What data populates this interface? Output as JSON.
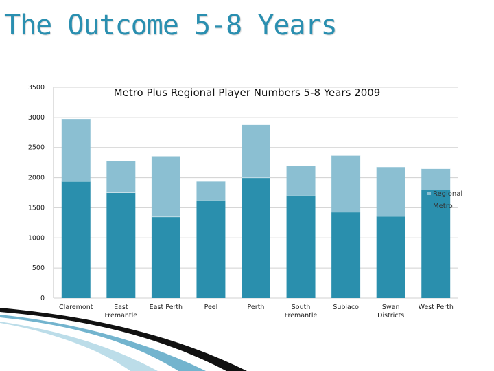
{
  "slide": {
    "title": "The Outcome 5-8 Years"
  },
  "colors": {
    "metro": "#2a8fad",
    "regional": "#8bbfd2",
    "title": "#2a8fb0"
  },
  "chart_data": {
    "type": "bar",
    "stacked": true,
    "title": "Metro Plus Regional Player Numbers 5-8 Years 2009",
    "categories": [
      "Claremont",
      "East Fremantle",
      "East Perth",
      "Peel",
      "Perth",
      "South Fremantle",
      "Subiaco",
      "Swan Districts",
      "West Perth"
    ],
    "series": [
      {
        "name": "Metro",
        "values": [
          1940,
          1750,
          1350,
          1630,
          2000,
          1710,
          1430,
          1360,
          1800
        ]
      },
      {
        "name": "Regional",
        "values": [
          1040,
          530,
          1010,
          310,
          880,
          490,
          940,
          820,
          350
        ]
      }
    ],
    "ylim": [
      0,
      3500
    ],
    "yticks": [
      "0",
      "500",
      "1000",
      "1500",
      "2000",
      "2500",
      "3000",
      "3500"
    ],
    "legend": {
      "placement": "right",
      "entries": [
        "Regional",
        "Metro"
      ]
    },
    "grid": true
  }
}
